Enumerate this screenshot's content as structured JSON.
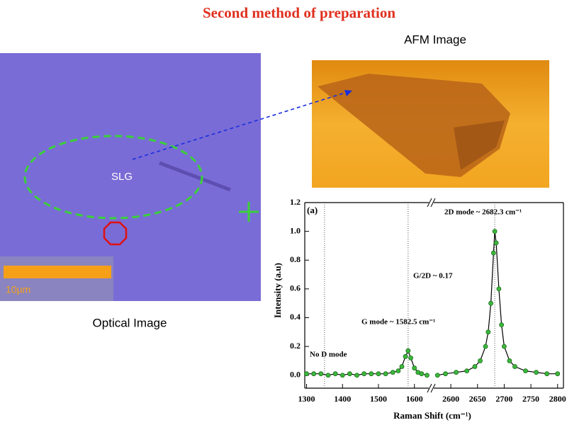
{
  "title": "Second method of preparation",
  "afm_label": "AFM Image",
  "optical_label": "Optical Image",
  "slg_label": "SLG",
  "scale_label": "10µm",
  "chart_data": {
    "type": "scatter",
    "panel_label": "(a)",
    "xlabel": "Raman Shift (cm⁻¹)",
    "ylabel": "Intensity (a.u)",
    "annotations": [
      "No D mode",
      "G mode ~ 1582.5 cm⁻¹",
      "G/2D ~ 0.17",
      "2D mode ~ 2682.3 cm⁻¹"
    ],
    "vlines": [
      1350,
      1582.5,
      2682.3
    ],
    "x_segments": [
      {
        "xlim": [
          1295,
          1640
        ],
        "xticks": [
          1300,
          1400,
          1500,
          1600
        ]
      },
      {
        "xlim": [
          2568,
          2811
        ],
        "xticks": [
          2600,
          2650,
          2700,
          2750,
          2800
        ]
      }
    ],
    "ylim": [
      -0.09,
      1.2
    ],
    "yticks": [
      {
        "value": 0,
        "label": "0.0"
      },
      0.2,
      0.4,
      0.6,
      0.8,
      {
        "value": 1,
        "label": "1.0"
      },
      1.2
    ],
    "series": [
      {
        "color": "#3cb83c",
        "x": [
          1300,
          1320,
          1340,
          1360,
          1380,
          1400,
          1420,
          1440,
          1460,
          1480,
          1500,
          1520,
          1540,
          1555,
          1565,
          1575,
          1582.5,
          1590,
          1600,
          1610,
          1620,
          1635,
          null,
          2575,
          2590,
          2610,
          2630,
          2645,
          2655,
          2665,
          2670,
          2675,
          2680,
          2682.3,
          2685,
          2690,
          2695,
          2700,
          2710,
          2720,
          2740,
          2760,
          2780,
          2800
        ],
        "values": [
          0.01,
          0.01,
          0.01,
          0.0,
          0.01,
          0.0,
          0.01,
          0.0,
          0.01,
          0.01,
          0.01,
          0.01,
          0.02,
          0.03,
          0.06,
          0.13,
          0.17,
          0.12,
          0.05,
          0.02,
          0.01,
          0.0,
          null,
          0.0,
          0.01,
          0.02,
          0.03,
          0.06,
          0.1,
          0.2,
          0.3,
          0.5,
          0.85,
          1.0,
          0.92,
          0.6,
          0.35,
          0.2,
          0.1,
          0.06,
          0.03,
          0.02,
          0.01,
          0.01
        ]
      }
    ]
  }
}
